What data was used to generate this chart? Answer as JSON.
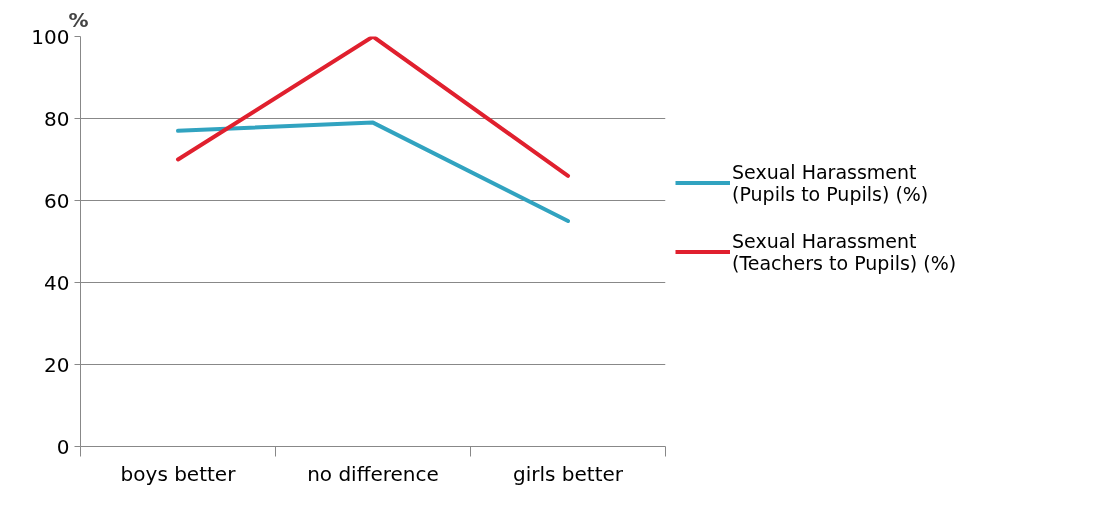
{
  "chart_data": {
    "type": "line",
    "ylabel": "%",
    "categories": [
      "boys better",
      "no difference",
      "girls better"
    ],
    "series": [
      {
        "name": "Sexual Harassment (Pupils to Pupils) (%)",
        "color": "#31a3c0",
        "values": [
          77,
          79,
          55
        ]
      },
      {
        "name": "Sexual Harassment (Teachers to Pupils) (%)",
        "color": "#e0202e",
        "values": [
          70,
          100,
          66
        ]
      }
    ],
    "ylim": [
      0,
      100
    ],
    "yticks": [
      0,
      20,
      40,
      60,
      80,
      100
    ],
    "grid": "y",
    "legend": "right",
    "marker": "none",
    "line_style": "solid"
  }
}
